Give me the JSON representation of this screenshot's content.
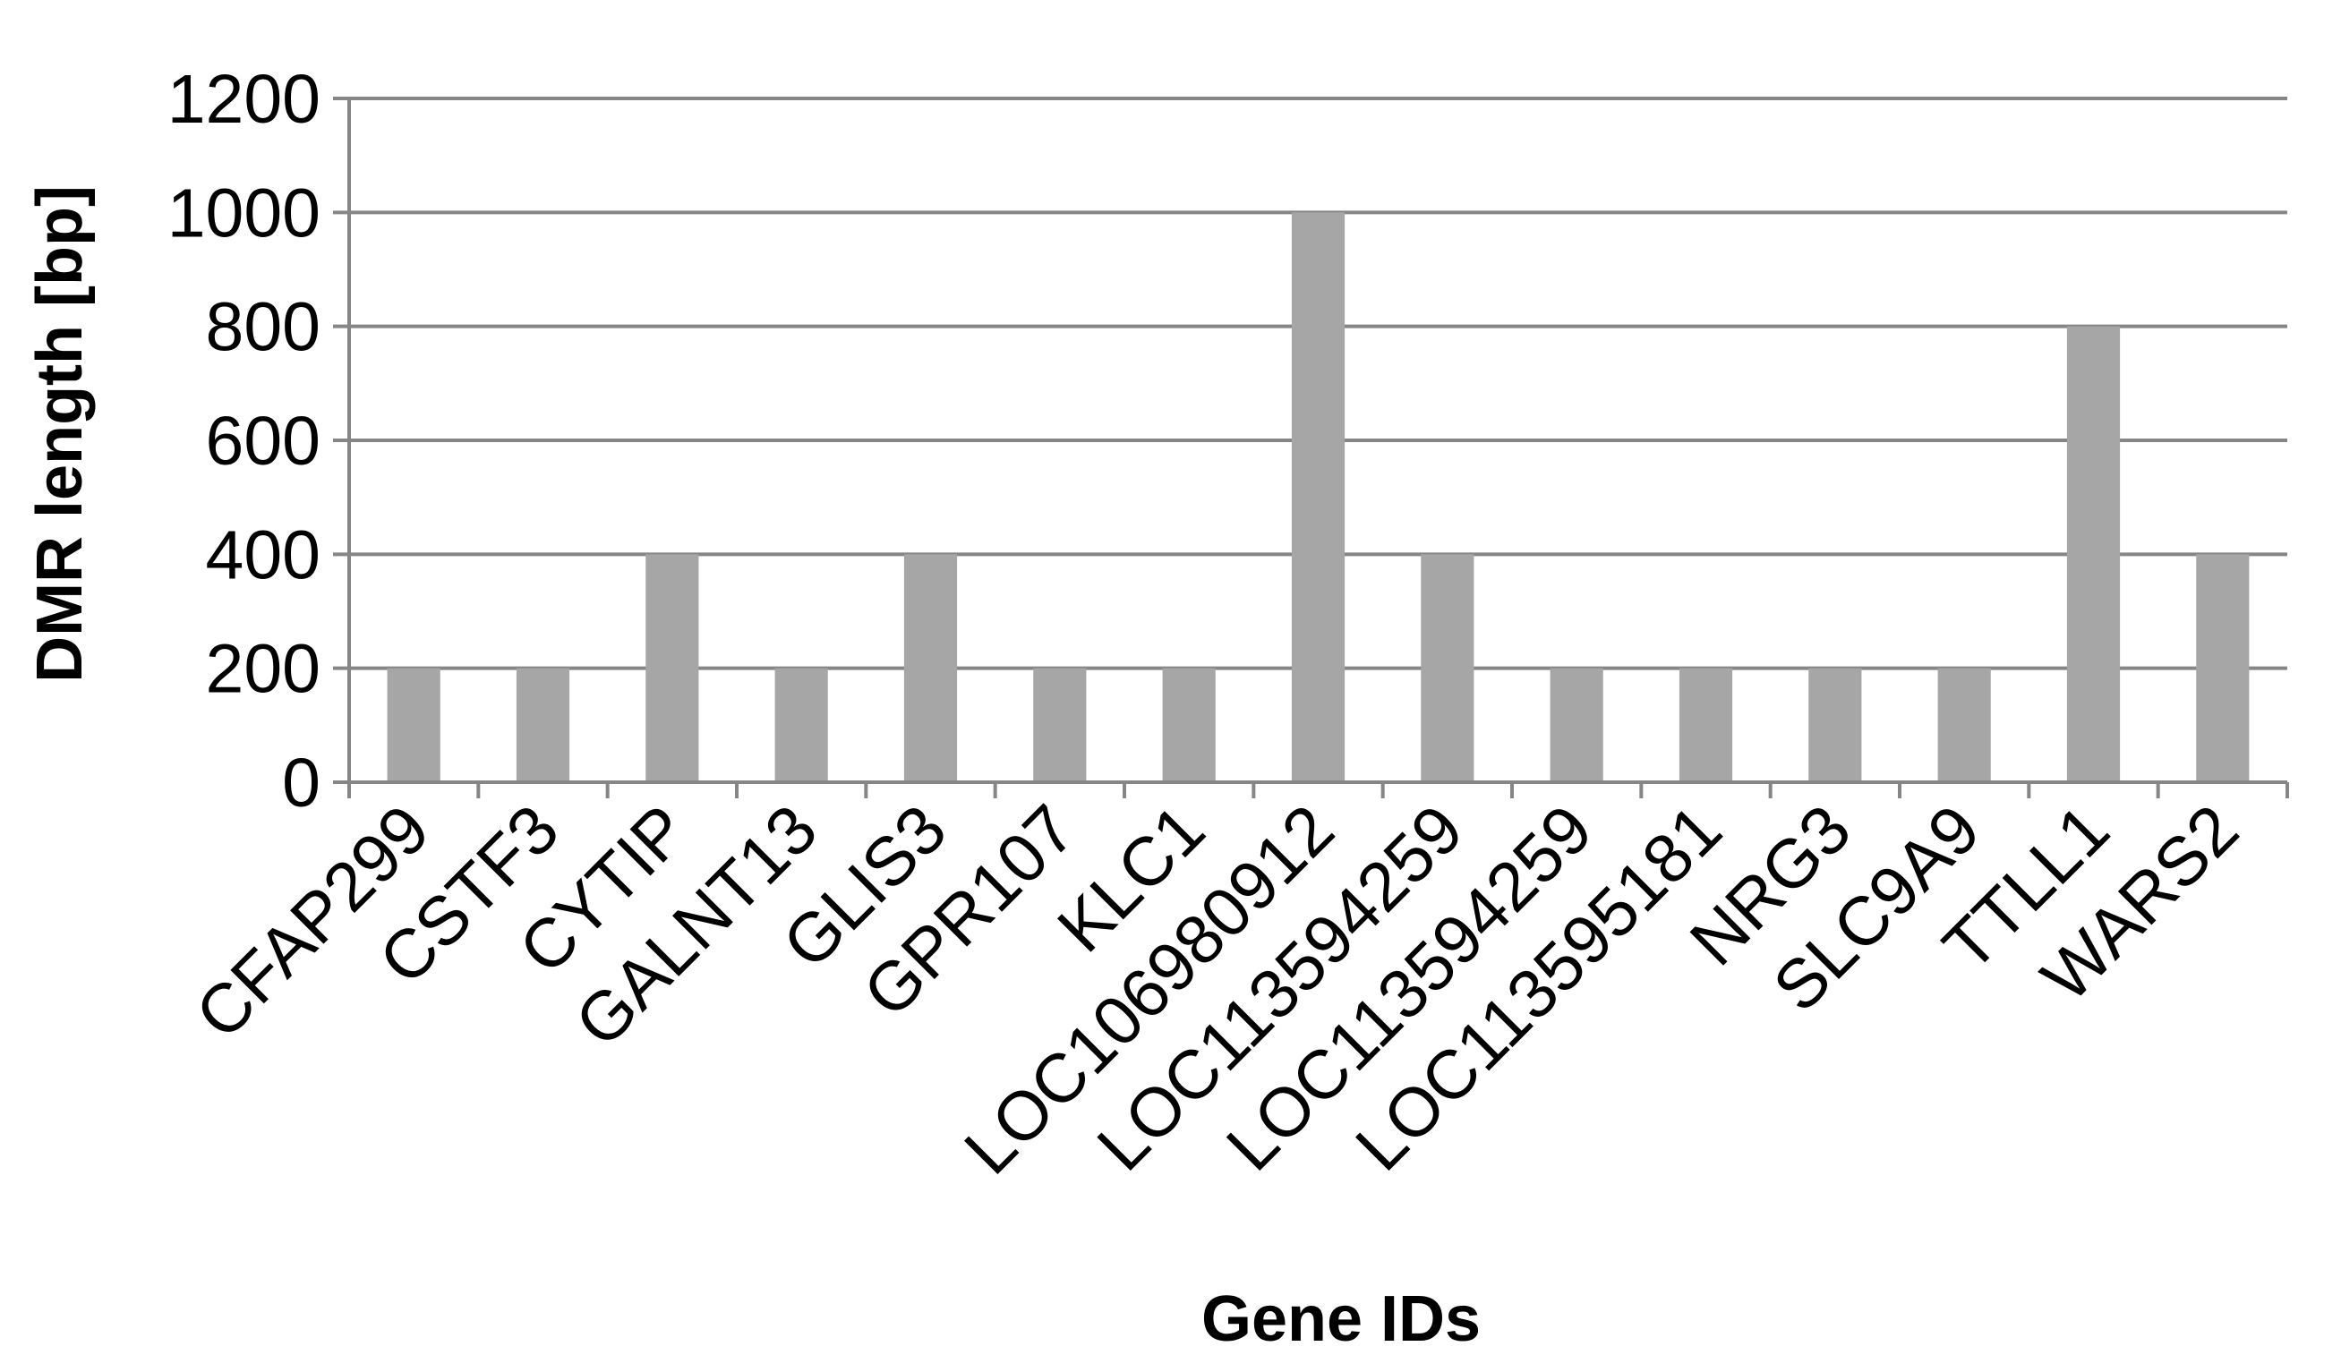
{
  "chart_data": {
    "type": "bar",
    "title": "",
    "xlabel": "Gene IDs",
    "ylabel": "DMR length [bp]",
    "categories": [
      "CFAP299",
      "CSTF3",
      "CYTIP",
      "GALNT13",
      "GLIS3",
      "GPR107",
      "KLC1",
      "LOC106980912",
      "LOC113594259",
      "LOC113594259",
      "LOC113595181",
      "NRG3",
      "SLC9A9",
      "TTLL1",
      "WARS2"
    ],
    "values": [
      200,
      200,
      400,
      200,
      400,
      200,
      200,
      1000,
      400,
      200,
      200,
      200,
      200,
      800,
      400
    ],
    "ylim": [
      0,
      1200
    ],
    "yticks": [
      0,
      200,
      400,
      600,
      800,
      1000,
      1200
    ],
    "grid": true,
    "legend": "none",
    "colors": {
      "bar": "#a6a6a6",
      "grid": "#868686",
      "text": "#000000"
    }
  }
}
